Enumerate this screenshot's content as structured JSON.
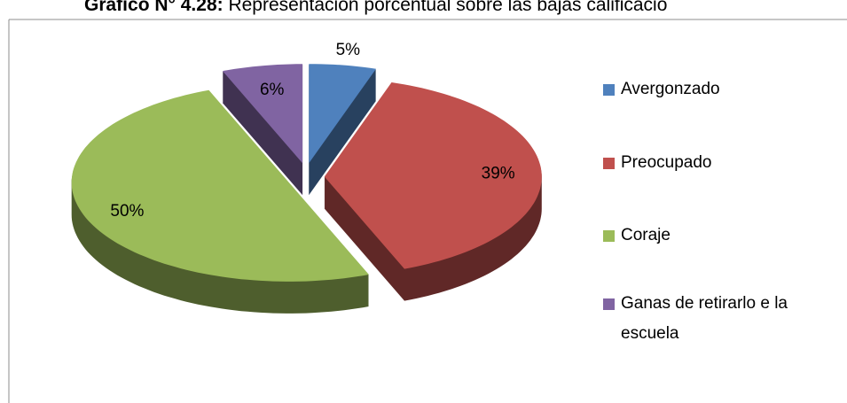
{
  "chart_data": {
    "type": "pie3d",
    "title": [
      "Gráfico N° 4.28:",
      " Representación porcentual sobre las bajas calificacio"
    ],
    "categories": [
      "Avergonzado",
      "Preocupado",
      "Coraje",
      "Ganas de retirarlo e la escuela"
    ],
    "values": [
      5,
      39,
      50,
      6
    ],
    "value_labels": [
      "5%",
      "39%",
      "50%",
      "6%"
    ],
    "colors": [
      "#4f81bd",
      "#c0504d",
      "#9bbb59",
      "#8064a2"
    ],
    "legend": "right"
  }
}
